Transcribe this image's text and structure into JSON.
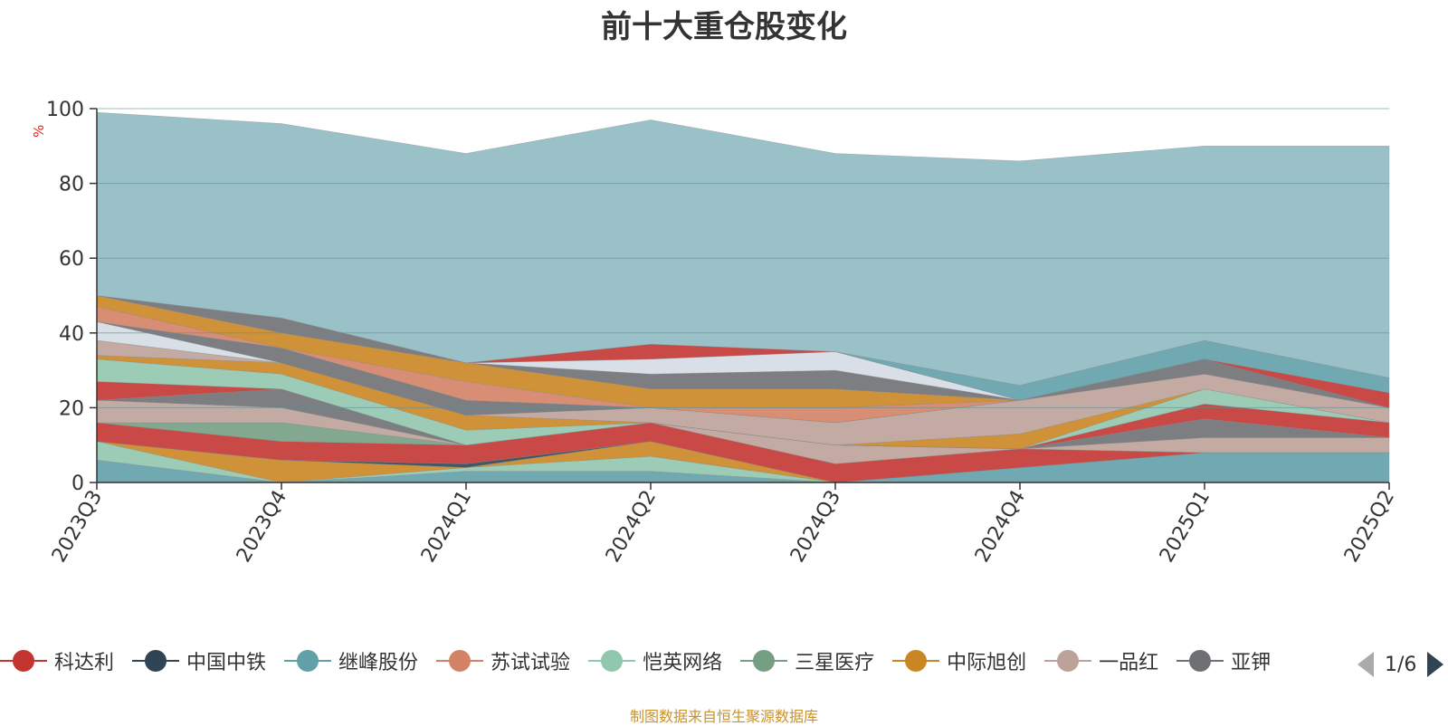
{
  "title": "前十大重仓股变化",
  "source_note": "制图数据来自恒生聚源数据库",
  "legend_page": "1/6",
  "legend": [
    {
      "name": "科达利",
      "color": "#c23531"
    },
    {
      "name": "中国中铁",
      "color": "#2f4554"
    },
    {
      "name": "继峰股份",
      "color": "#61a0a8"
    },
    {
      "name": "苏试试验",
      "color": "#d48265"
    },
    {
      "name": "恺英网络",
      "color": "#91c7ae"
    },
    {
      "name": "三星医疗",
      "color": "#749f83"
    },
    {
      "name": "中际旭创",
      "color": "#ca8622"
    },
    {
      "name": "一品红",
      "color": "#bda29a"
    },
    {
      "name": "亚钾",
      "color": "#6e7074"
    }
  ],
  "chart_data": {
    "type": "area",
    "stacked": true,
    "y_unit": "%",
    "ylim": [
      0,
      100
    ],
    "yticks": [
      0,
      20,
      40,
      60,
      80,
      100
    ],
    "categories": [
      "2023Q3",
      "2023Q4",
      "2024Q1",
      "2024Q2",
      "2024Q3",
      "2024Q4",
      "2025Q1",
      "2025Q2"
    ],
    "bands": [
      {
        "color": "#61a0a8",
        "values": [
          6,
          0,
          3,
          3,
          0,
          4,
          8,
          8
        ]
      },
      {
        "color": "#91c7ae",
        "values": [
          5,
          0,
          1,
          4,
          0,
          0,
          0,
          0
        ]
      },
      {
        "color": "#ca8622",
        "values": [
          0,
          6,
          0,
          4,
          0,
          0,
          0,
          0
        ]
      },
      {
        "color": "#2f4554",
        "values": [
          0,
          0,
          1,
          0,
          0,
          0,
          0,
          0
        ]
      },
      {
        "color": "#c23531",
        "values": [
          5,
          5,
          5,
          5,
          5,
          5,
          0,
          0
        ]
      },
      {
        "color": "#749f83",
        "values": [
          0,
          5,
          0,
          0,
          0,
          0,
          0,
          0
        ]
      },
      {
        "color": "#bda29a",
        "values": [
          6,
          4,
          0,
          0,
          5,
          0,
          4,
          4
        ]
      },
      {
        "color": "#6e7074",
        "values": [
          0,
          5,
          0,
          0,
          0,
          0,
          5,
          0
        ]
      },
      {
        "color": "#c23531",
        "values": [
          5,
          0,
          0,
          0,
          0,
          0,
          4,
          4
        ]
      },
      {
        "color": "#91c7ae",
        "values": [
          6,
          4,
          4,
          0,
          0,
          0,
          4,
          0
        ]
      },
      {
        "color": "#ca8622",
        "values": [
          1,
          3,
          4,
          0,
          0,
          4,
          0,
          0
        ]
      },
      {
        "color": "#bda29a",
        "values": [
          4,
          0,
          0,
          4,
          6,
          9,
          4,
          4
        ]
      },
      {
        "color": "#d4dce4",
        "values": [
          5,
          0,
          0,
          0,
          0,
          0,
          0,
          0
        ]
      },
      {
        "color": "#6e7074",
        "values": [
          0,
          4,
          4,
          0,
          0,
          0,
          4,
          0
        ]
      },
      {
        "color": "#d48265",
        "values": [
          4,
          0,
          5,
          0,
          4,
          0,
          0,
          0
        ]
      },
      {
        "color": "#ca8622",
        "values": [
          3,
          4,
          5,
          5,
          5,
          0,
          0,
          0
        ]
      },
      {
        "color": "#6e7074",
        "values": [
          0,
          4,
          0,
          4,
          5,
          0,
          0,
          0
        ]
      },
      {
        "color": "#d4dce4",
        "values": [
          0,
          0,
          0,
          4,
          5,
          0,
          0,
          0
        ]
      },
      {
        "color": "#c23531",
        "values": [
          0,
          0,
          0,
          4,
          0,
          0,
          0,
          4
        ]
      },
      {
        "color": "#61a0a8",
        "values": [
          0,
          0,
          0,
          0,
          0,
          4,
          5,
          4
        ]
      },
      {
        "color": "#8fbac2",
        "values": [
          49,
          52,
          56,
          60,
          53,
          60,
          52,
          62
        ]
      }
    ]
  }
}
